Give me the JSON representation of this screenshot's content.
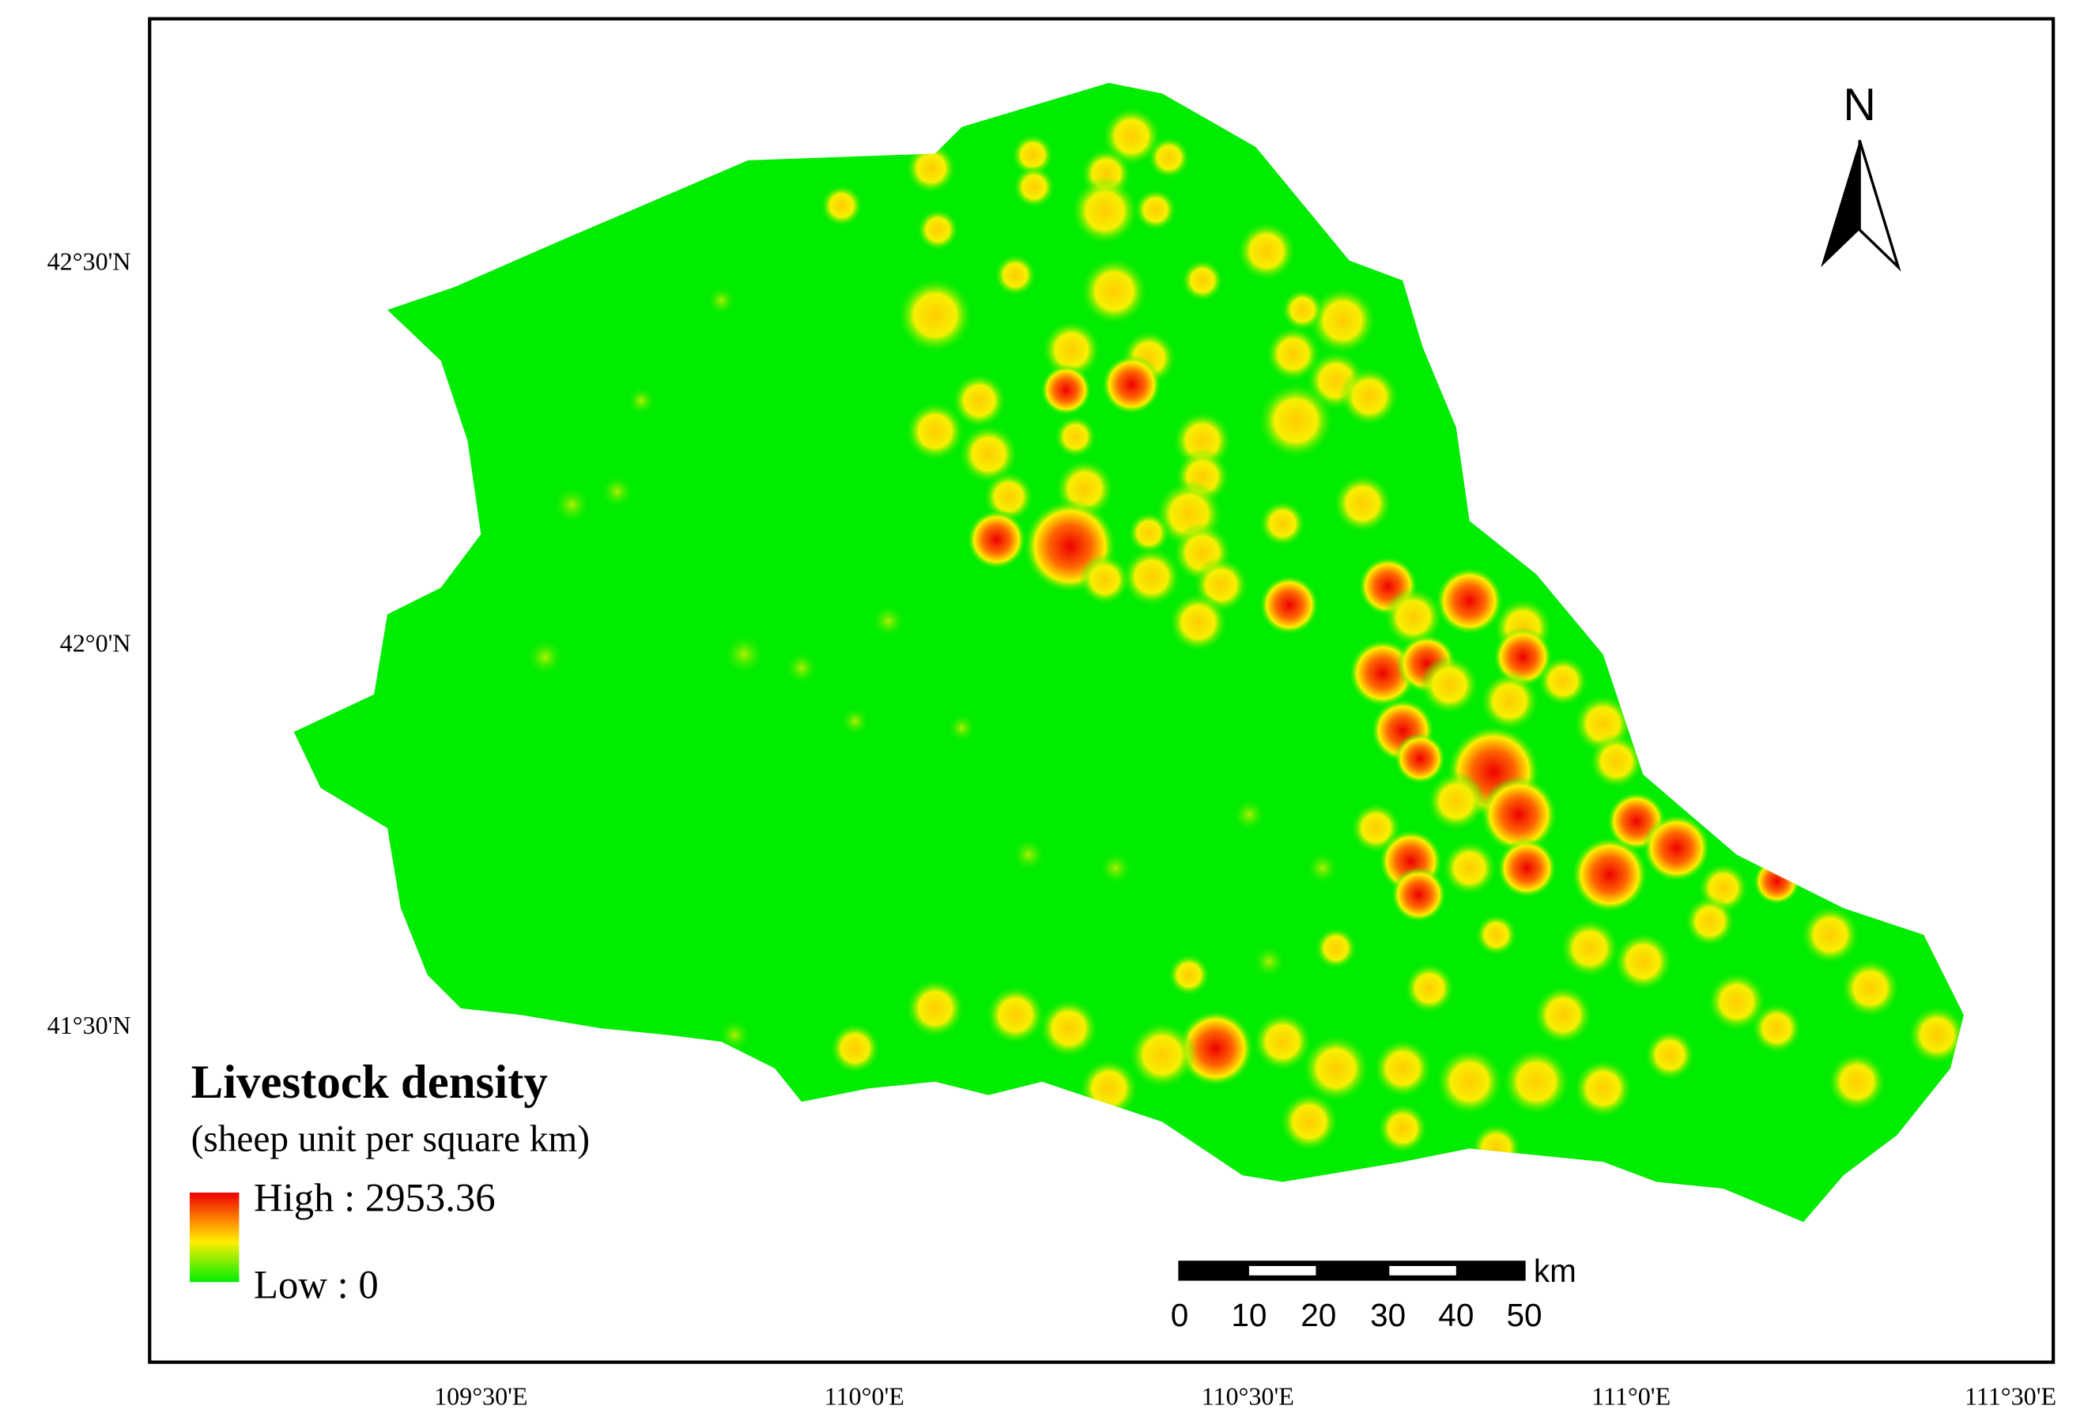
{
  "map": {
    "north": "N",
    "lat_labels": [
      "42°30'N",
      "42°0'N",
      "41°30'N"
    ],
    "lon_labels": [
      "109°30'E",
      "110°0'E",
      "110°30'E",
      "111°0'E",
      "111°30'E"
    ],
    "legend": {
      "title": "Livestock density",
      "subtitle": "(sheep unit per square km)",
      "high": "High : 2953.36",
      "low": "Low : 0"
    },
    "scale_bar": {
      "unit": "km",
      "labels": [
        "0",
        "10",
        "20",
        "30",
        "40",
        "50"
      ]
    }
  }
}
